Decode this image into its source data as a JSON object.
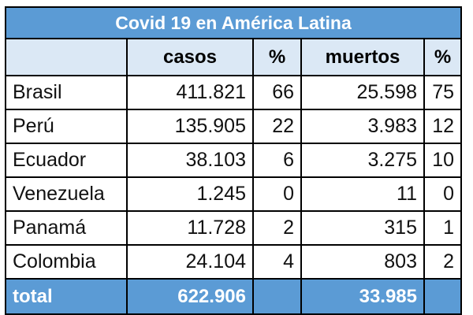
{
  "chart_data": {
    "type": "table",
    "title": "Covid 19 en América Latina",
    "columns": [
      "",
      "casos",
      "%",
      "muertos",
      "%"
    ],
    "rows": [
      {
        "country": "Brasil",
        "casos": "411.821",
        "casos_pct": "66",
        "muertos": "25.598",
        "muertos_pct": "75"
      },
      {
        "country": "Perú",
        "casos": "135.905",
        "casos_pct": "22",
        "muertos": "3.983",
        "muertos_pct": "12"
      },
      {
        "country": "Ecuador",
        "casos": "38.103",
        "casos_pct": "6",
        "muertos": "3.275",
        "muertos_pct": "10"
      },
      {
        "country": "Venezuela",
        "casos": "1.245",
        "casos_pct": "0",
        "muertos": "11",
        "muertos_pct": "0"
      },
      {
        "country": "Panamá",
        "casos": "11.728",
        "casos_pct": "2",
        "muertos": "315",
        "muertos_pct": "1"
      },
      {
        "country": "Colombia",
        "casos": "24.104",
        "casos_pct": "4",
        "muertos": "803",
        "muertos_pct": "2"
      }
    ],
    "total": {
      "label": "total",
      "casos": "622.906",
      "casos_pct": "",
      "muertos": "33.985",
      "muertos_pct": ""
    },
    "colors": {
      "header_bg": "#5b9bd5",
      "subheader_bg": "#dbe8f5",
      "border": "#000000"
    }
  }
}
